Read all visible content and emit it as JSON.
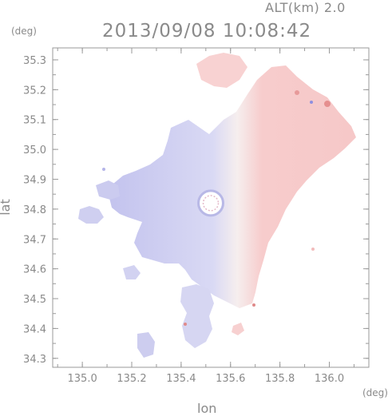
{
  "header": {
    "altitude": "ALT(km) 2.0",
    "timestamp": "2013/09/08 10:08:42"
  },
  "axes": {
    "y_unit": "(deg)",
    "x_unit": "(deg)",
    "ylabel": "lat",
    "xlabel": "lon",
    "x_ticks": [
      "135.0",
      "135.2",
      "135.4",
      "135.6",
      "135.8",
      "136.0"
    ],
    "y_ticks": [
      "35.3",
      "35.2",
      "35.1",
      "35.0",
      "34.9",
      "34.8",
      "34.7",
      "34.6",
      "34.5",
      "34.4",
      "34.3"
    ],
    "xlim": [
      134.88,
      136.16
    ],
    "ylim": [
      34.27,
      35.34
    ]
  },
  "colors": {
    "approaching": "#c8c8f0",
    "receding": "#f5c2c2",
    "axis": "#9a9a9a"
  },
  "map": {
    "radar_center": [
      135.52,
      34.82
    ],
    "radar_ring_radius_deg": 0.05
  }
}
